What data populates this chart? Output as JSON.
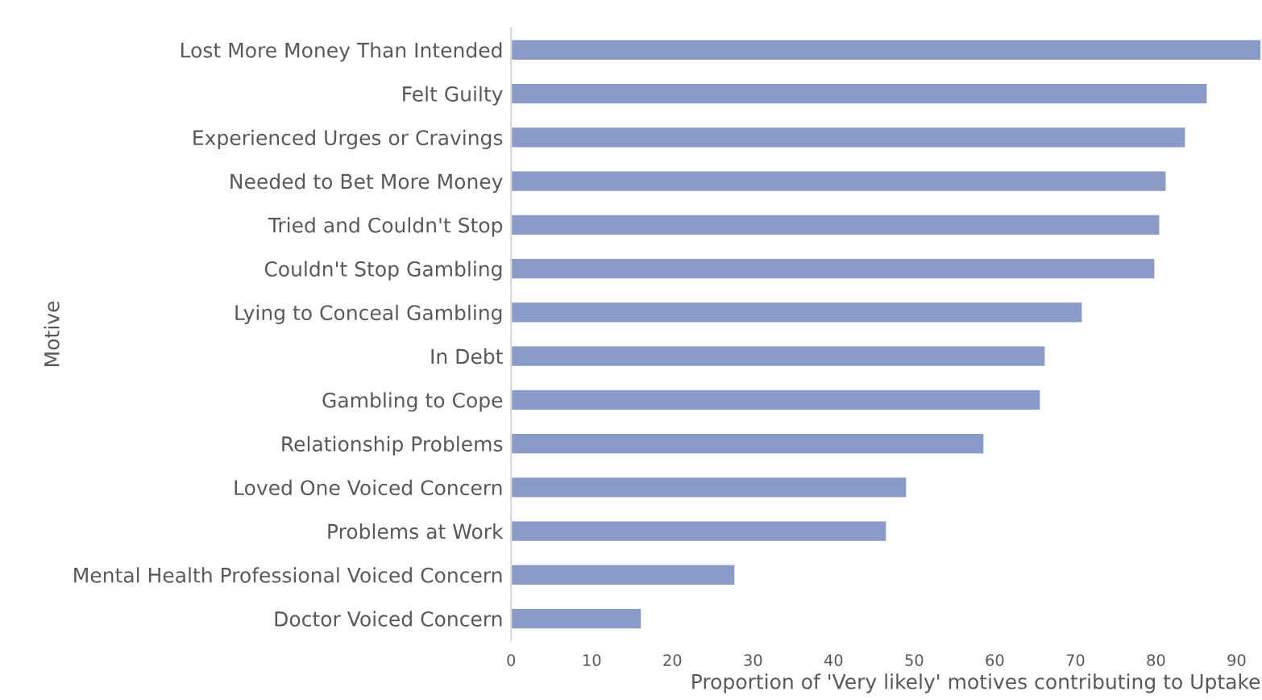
{
  "chart_data": {
    "type": "bar",
    "orientation": "horizontal",
    "ylabel": "Motive",
    "xlabel": "Proportion of 'Very likely' motives contributing to Uptake",
    "categories": [
      "Lost More Money Than Intended",
      "Felt Guilty",
      "Experienced Urges or Cravings",
      "Needed to Bet More Money",
      "Tried and Couldn't Stop",
      "Couldn't Stop Gambling",
      "Lying to Conceal Gambling",
      "In Debt",
      "Gambling to Cope",
      "Relationship Problems",
      "Loved One Voiced Concern",
      "Problems at Work",
      "Mental Health Professional Voiced Concern",
      "Doctor Voiced Concern"
    ],
    "values": [
      93,
      86.3,
      83.6,
      81.2,
      80.4,
      79.8,
      70.8,
      66.2,
      65.6,
      58.6,
      49.0,
      46.5,
      27.7,
      16.1
    ],
    "color": "#8a9bc8",
    "xlim": [
      0,
      93
    ],
    "xticks": [
      0,
      10,
      20,
      30,
      40,
      50,
      60,
      70,
      80,
      90
    ],
    "grid": false,
    "legend": false
  }
}
